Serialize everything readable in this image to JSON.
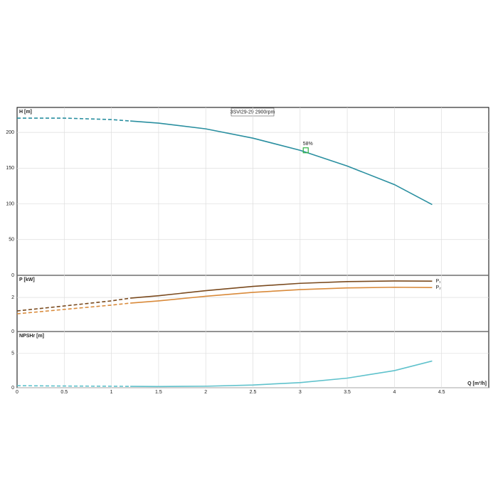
{
  "chart_data": [
    {
      "type": "line",
      "title": "3SVI29-29 2900rpm",
      "y_label": "H [m]",
      "xlim": [
        0,
        5
      ],
      "xticks": [
        0,
        0.5,
        1,
        1.5,
        2,
        2.5,
        3,
        3.5,
        4,
        4.5
      ],
      "ylim": [
        0,
        235
      ],
      "yticks": [
        0,
        50,
        100,
        150,
        200
      ],
      "grid": true,
      "series": [
        {
          "color": "#2a8fa0",
          "linestyle": "dashed",
          "x": [
            0,
            0.5,
            1,
            1.2
          ],
          "values": [
            220,
            220,
            218,
            216
          ]
        },
        {
          "color": "#2a8fa0",
          "linestyle": "solid",
          "x": [
            1.2,
            1.5,
            2,
            2.5,
            3,
            3.5,
            4,
            4.4
          ],
          "values": [
            216,
            213,
            205,
            192,
            175,
            153,
            127,
            99
          ]
        }
      ],
      "annotations": [
        {
          "text": "58%",
          "x": 3.06,
          "y": 175,
          "color": "#2fb344"
        }
      ]
    },
    {
      "type": "line",
      "y_label": "P [kW]",
      "xlim": [
        0,
        5
      ],
      "xticks": [
        0,
        0.5,
        1,
        1.5,
        2,
        2.5,
        3,
        3.5,
        4,
        4.5
      ],
      "ylim": [
        0,
        3.3
      ],
      "yticks": [
        0,
        2
      ],
      "grid": true,
      "series": [
        {
          "color": "#7a4a1e",
          "linestyle": "dashed",
          "x": [
            0,
            0.5,
            1,
            1.2
          ],
          "values": [
            1.21,
            1.5,
            1.8,
            1.96
          ]
        },
        {
          "name": "P₁",
          "color": "#7a4a1e",
          "linestyle": "solid",
          "x": [
            1.2,
            1.5,
            2,
            2.5,
            3,
            3.5,
            4,
            4.4
          ],
          "values": [
            1.96,
            2.1,
            2.4,
            2.65,
            2.83,
            2.93,
            2.97,
            2.96
          ]
        },
        {
          "color": "#d98a3a",
          "linestyle": "dashed",
          "x": [
            0,
            0.5,
            1,
            1.2
          ],
          "values": [
            1.04,
            1.3,
            1.55,
            1.67
          ]
        },
        {
          "name": "P₂",
          "color": "#d98a3a",
          "linestyle": "solid",
          "x": [
            1.2,
            1.5,
            2,
            2.5,
            3,
            3.5,
            4,
            4.4
          ],
          "values": [
            1.67,
            1.8,
            2.07,
            2.3,
            2.46,
            2.56,
            2.6,
            2.58
          ]
        }
      ]
    },
    {
      "type": "line",
      "y_label": "NPSHr [m]",
      "x_label": "Q [m³/h]",
      "xlim": [
        0,
        5
      ],
      "xticks": [
        0,
        0.5,
        1,
        1.5,
        2,
        2.5,
        3,
        3.5,
        4,
        4.5
      ],
      "ylim": [
        0,
        8.2
      ],
      "yticks": [
        0,
        5
      ],
      "grid": true,
      "series": [
        {
          "color": "#5fc2cc",
          "linestyle": "dashed",
          "x": [
            0,
            0.5,
            1,
            1.2
          ],
          "values": [
            0.3,
            0.25,
            0.22,
            0.2
          ]
        },
        {
          "color": "#5fc2cc",
          "linestyle": "solid",
          "x": [
            1.2,
            1.5,
            2,
            2.5,
            3,
            3.5,
            4,
            4.4
          ],
          "values": [
            0.2,
            0.18,
            0.22,
            0.4,
            0.75,
            1.4,
            2.5,
            3.9
          ]
        }
      ]
    }
  ]
}
